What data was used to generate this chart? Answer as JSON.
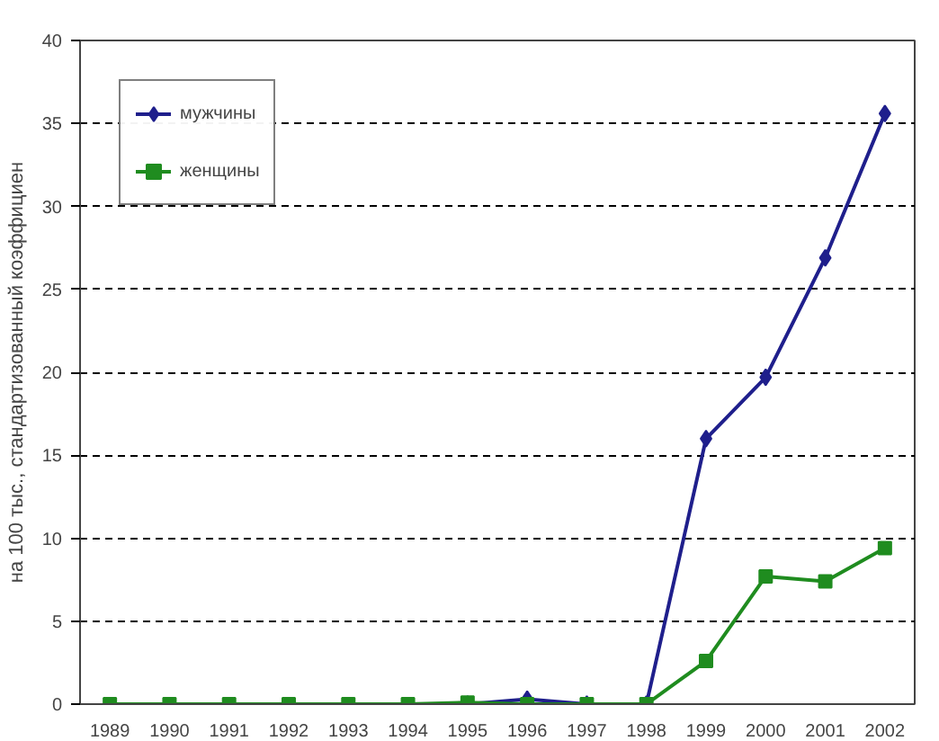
{
  "chart_data": {
    "type": "line",
    "ylabel": "на 100 тыс., стандартизованный коэффициен",
    "categories": [
      "1989",
      "1990",
      "1991",
      "1992",
      "1993",
      "1994",
      "1995",
      "1996",
      "1997",
      "1998",
      "1999",
      "2000",
      "2001",
      "2002"
    ],
    "series": [
      {
        "name": "мужчины",
        "color": "#1f1f8c",
        "marker": "diamond",
        "values": [
          null,
          null,
          null,
          null,
          null,
          null,
          0,
          0.3,
          0,
          0,
          16,
          19.7,
          26.9,
          35.6
        ]
      },
      {
        "name": "женщины",
        "color": "#1f8c1f",
        "marker": "square",
        "values": [
          0,
          0,
          0,
          0,
          0,
          0,
          0.1,
          0,
          0,
          0,
          2.6,
          7.7,
          7.4,
          9.4
        ]
      }
    ],
    "ylim": [
      0,
      40
    ],
    "yticks": [
      0,
      5,
      10,
      15,
      20,
      25,
      30,
      35,
      40
    ],
    "grid": "y",
    "legend": "top left",
    "line_style": "solid"
  }
}
